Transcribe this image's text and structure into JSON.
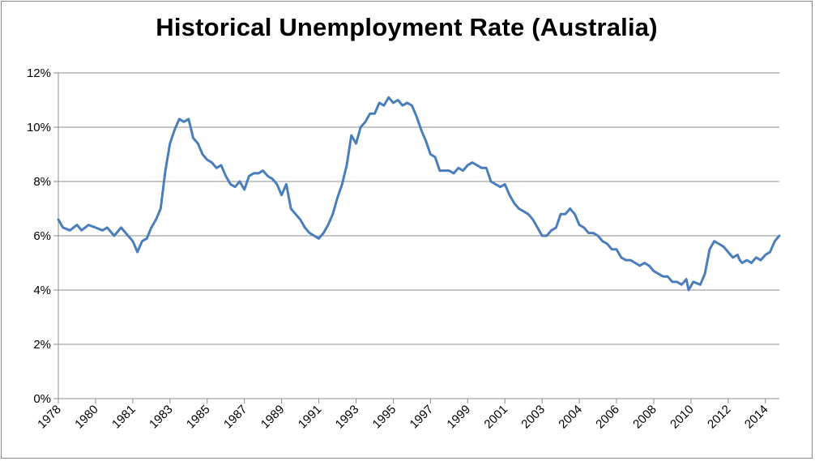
{
  "chart_data": {
    "type": "line",
    "title": "Historical Unemployment Rate (Australia)",
    "xlabel": "",
    "ylabel": "",
    "ylim": [
      0,
      12
    ],
    "y_ticks": [
      "0%",
      "2%",
      "4%",
      "6%",
      "8%",
      "10%",
      "12%"
    ],
    "y_tick_values": [
      0,
      2,
      4,
      6,
      8,
      10,
      12
    ],
    "x_ticks": [
      "1978",
      "1980",
      "1981",
      "1983",
      "1985",
      "1987",
      "1989",
      "1991",
      "1993",
      "1995",
      "1997",
      "1999",
      "2001",
      "2003",
      "2004",
      "2006",
      "2008",
      "2010",
      "2012",
      "2014"
    ],
    "x_tick_values": [
      1978.0,
      1979.6,
      1981.2,
      1982.8,
      1984.4,
      1986.0,
      1987.6,
      1989.2,
      1990.8,
      1992.4,
      1994.0,
      1995.6,
      1997.2,
      1998.8,
      2000.4,
      2002.0,
      2003.6,
      2005.2,
      2006.8,
      2008.4
    ],
    "xlim": [
      1978.0,
      2009.0
    ],
    "grid": "horizontal",
    "line_color": "#4a7ebb",
    "series": [
      {
        "name": "",
        "points": [
          [
            1978.0,
            6.6
          ],
          [
            1978.2,
            6.3
          ],
          [
            1978.5,
            6.2
          ],
          [
            1978.8,
            6.4
          ],
          [
            1979.0,
            6.2
          ],
          [
            1979.3,
            6.4
          ],
          [
            1979.6,
            6.3
          ],
          [
            1979.9,
            6.2
          ],
          [
            1980.1,
            6.3
          ],
          [
            1980.4,
            6.0
          ],
          [
            1980.7,
            6.3
          ],
          [
            1981.0,
            6.0
          ],
          [
            1981.2,
            5.8
          ],
          [
            1981.4,
            5.4
          ],
          [
            1981.6,
            5.8
          ],
          [
            1981.8,
            5.9
          ],
          [
            1982.0,
            6.3
          ],
          [
            1982.2,
            6.6
          ],
          [
            1982.4,
            7.0
          ],
          [
            1982.6,
            8.4
          ],
          [
            1982.8,
            9.4
          ],
          [
            1983.0,
            9.9
          ],
          [
            1983.2,
            10.3
          ],
          [
            1983.4,
            10.2
          ],
          [
            1983.6,
            10.3
          ],
          [
            1983.8,
            9.6
          ],
          [
            1984.0,
            9.4
          ],
          [
            1984.2,
            9.0
          ],
          [
            1984.4,
            8.8
          ],
          [
            1984.6,
            8.7
          ],
          [
            1984.8,
            8.5
          ],
          [
            1985.0,
            8.6
          ],
          [
            1985.2,
            8.2
          ],
          [
            1985.4,
            7.9
          ],
          [
            1985.6,
            7.8
          ],
          [
            1985.8,
            8.0
          ],
          [
            1986.0,
            7.7
          ],
          [
            1986.2,
            8.2
          ],
          [
            1986.4,
            8.3
          ],
          [
            1986.6,
            8.3
          ],
          [
            1986.8,
            8.4
          ],
          [
            1987.0,
            8.2
          ],
          [
            1987.2,
            8.1
          ],
          [
            1987.4,
            7.9
          ],
          [
            1987.6,
            7.5
          ],
          [
            1987.8,
            7.9
          ],
          [
            1988.0,
            7.0
          ],
          [
            1988.2,
            6.8
          ],
          [
            1988.4,
            6.6
          ],
          [
            1988.6,
            6.3
          ],
          [
            1988.8,
            6.1
          ],
          [
            1989.0,
            6.0
          ],
          [
            1989.2,
            5.9
          ],
          [
            1989.4,
            6.1
          ],
          [
            1989.6,
            6.4
          ],
          [
            1989.8,
            6.8
          ],
          [
            1990.0,
            7.4
          ],
          [
            1990.2,
            7.9
          ],
          [
            1990.4,
            8.6
          ],
          [
            1990.6,
            9.7
          ],
          [
            1990.8,
            9.4
          ],
          [
            1991.0,
            10.0
          ],
          [
            1991.2,
            10.2
          ],
          [
            1991.4,
            10.5
          ],
          [
            1991.6,
            10.5
          ],
          [
            1991.8,
            10.9
          ],
          [
            1992.0,
            10.8
          ],
          [
            1992.2,
            11.1
          ],
          [
            1992.4,
            10.9
          ],
          [
            1992.6,
            11.0
          ],
          [
            1992.8,
            10.8
          ],
          [
            1993.0,
            10.9
          ],
          [
            1993.2,
            10.8
          ],
          [
            1993.4,
            10.4
          ],
          [
            1993.6,
            9.9
          ],
          [
            1993.8,
            9.5
          ],
          [
            1994.0,
            9.0
          ],
          [
            1994.2,
            8.9
          ],
          [
            1994.4,
            8.4
          ],
          [
            1994.6,
            8.4
          ],
          [
            1994.8,
            8.4
          ],
          [
            1995.0,
            8.3
          ],
          [
            1995.2,
            8.5
          ],
          [
            1995.4,
            8.4
          ],
          [
            1995.6,
            8.6
          ],
          [
            1995.8,
            8.7
          ],
          [
            1996.0,
            8.6
          ],
          [
            1996.2,
            8.5
          ],
          [
            1996.4,
            8.5
          ],
          [
            1996.6,
            8.0
          ],
          [
            1996.8,
            7.9
          ],
          [
            1997.0,
            7.8
          ],
          [
            1997.2,
            7.9
          ],
          [
            1997.4,
            7.5
          ],
          [
            1997.6,
            7.2
          ],
          [
            1997.8,
            7.0
          ],
          [
            1998.0,
            6.9
          ],
          [
            1998.2,
            6.8
          ],
          [
            1998.4,
            6.6
          ],
          [
            1998.6,
            6.3
          ],
          [
            1998.8,
            6.0
          ],
          [
            1999.0,
            6.0
          ],
          [
            1999.2,
            6.2
          ],
          [
            1999.4,
            6.3
          ],
          [
            1999.6,
            6.8
          ],
          [
            1999.8,
            6.8
          ],
          [
            2000.0,
            7.0
          ],
          [
            2000.2,
            6.8
          ],
          [
            2000.4,
            6.4
          ],
          [
            2000.6,
            6.3
          ],
          [
            2000.8,
            6.1
          ],
          [
            2001.0,
            6.1
          ],
          [
            2001.2,
            6.0
          ],
          [
            2001.4,
            5.8
          ],
          [
            2001.6,
            5.7
          ],
          [
            2001.8,
            5.5
          ],
          [
            2002.0,
            5.5
          ],
          [
            2002.2,
            5.2
          ],
          [
            2002.4,
            5.1
          ],
          [
            2002.6,
            5.1
          ],
          [
            2002.8,
            5.0
          ],
          [
            2003.0,
            4.9
          ],
          [
            2003.2,
            5.0
          ],
          [
            2003.4,
            4.9
          ],
          [
            2003.6,
            4.7
          ],
          [
            2003.8,
            4.6
          ],
          [
            2004.0,
            4.5
          ],
          [
            2004.2,
            4.5
          ],
          [
            2004.4,
            4.3
          ],
          [
            2004.6,
            4.3
          ],
          [
            2004.8,
            4.2
          ],
          [
            2005.0,
            4.4
          ],
          [
            2005.1,
            4.0
          ],
          [
            2005.3,
            4.3
          ],
          [
            2005.6,
            4.2
          ],
          [
            2005.8,
            4.6
          ],
          [
            2006.0,
            5.5
          ],
          [
            2006.2,
            5.8
          ],
          [
            2006.4,
            5.7
          ],
          [
            2006.6,
            5.6
          ],
          [
            2006.8,
            5.4
          ],
          [
            2007.0,
            5.2
          ],
          [
            2007.2,
            5.3
          ],
          [
            2007.3,
            5.1
          ],
          [
            2007.4,
            5.0
          ],
          [
            2007.6,
            5.1
          ],
          [
            2007.8,
            5.0
          ],
          [
            2008.0,
            5.2
          ],
          [
            2008.2,
            5.1
          ],
          [
            2008.4,
            5.3
          ],
          [
            2008.6,
            5.4
          ],
          [
            2008.8,
            5.8
          ],
          [
            2009.0,
            6.0
          ]
        ]
      }
    ]
  }
}
